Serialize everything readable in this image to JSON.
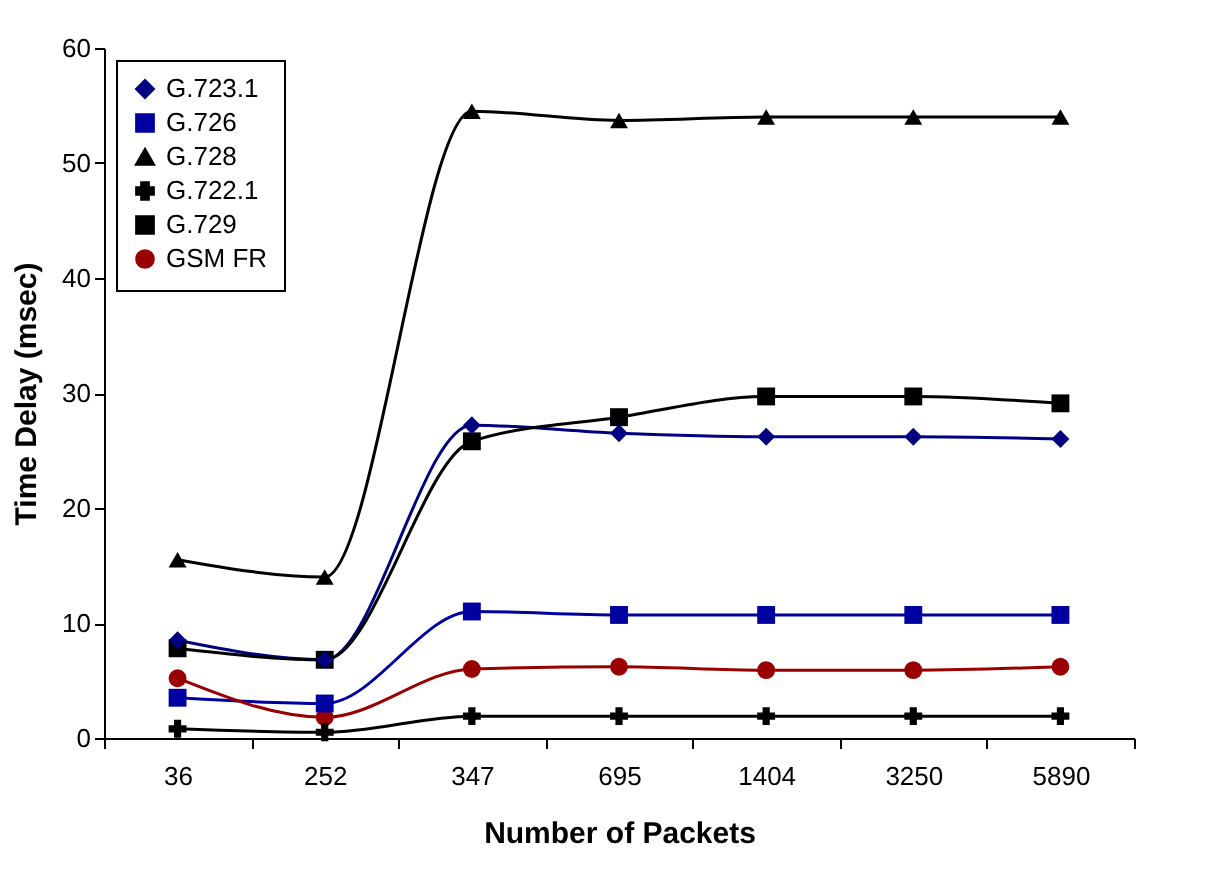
{
  "chart_data": {
    "type": "line",
    "xlabel": "Number of Packets",
    "ylabel": "Time Delay (msec)",
    "categories": [
      "36",
      "252",
      "347",
      "695",
      "1404",
      "3250",
      "5890"
    ],
    "ylim": [
      0,
      60
    ],
    "yticks": [
      0,
      10,
      20,
      30,
      40,
      50,
      60
    ],
    "grid": false,
    "legend": "top left",
    "series": [
      {
        "name": "G.723.1",
        "color": "#000080",
        "marker": "diamond",
        "values": [
          8.5,
          6.8,
          27.2,
          26.5,
          26.2,
          26.2,
          26
        ]
      },
      {
        "name": "G.726",
        "color": "#0000a0",
        "marker": "square",
        "values": [
          3.5,
          3.0,
          11,
          10.7,
          10.7,
          10.7,
          10.7
        ]
      },
      {
        "name": "G.728",
        "color": "#000000",
        "marker": "triangle",
        "values": [
          15.5,
          14,
          54.5,
          53.7,
          54,
          54,
          54
        ]
      },
      {
        "name": "G.722.1",
        "color": "#000000",
        "marker": "cross",
        "values": [
          0.8,
          0.5,
          1.9,
          1.9,
          1.9,
          1.9,
          1.9
        ]
      },
      {
        "name": "G.729",
        "color": "#000000",
        "marker": "square",
        "values": [
          7.8,
          6.8,
          25.8,
          27.9,
          29.7,
          29.7,
          29.1
        ]
      },
      {
        "name": "GSM FR",
        "color": "#990000",
        "marker": "circle",
        "values": [
          5.2,
          1.8,
          6,
          6.2,
          5.9,
          5.9,
          6.2
        ]
      }
    ]
  }
}
